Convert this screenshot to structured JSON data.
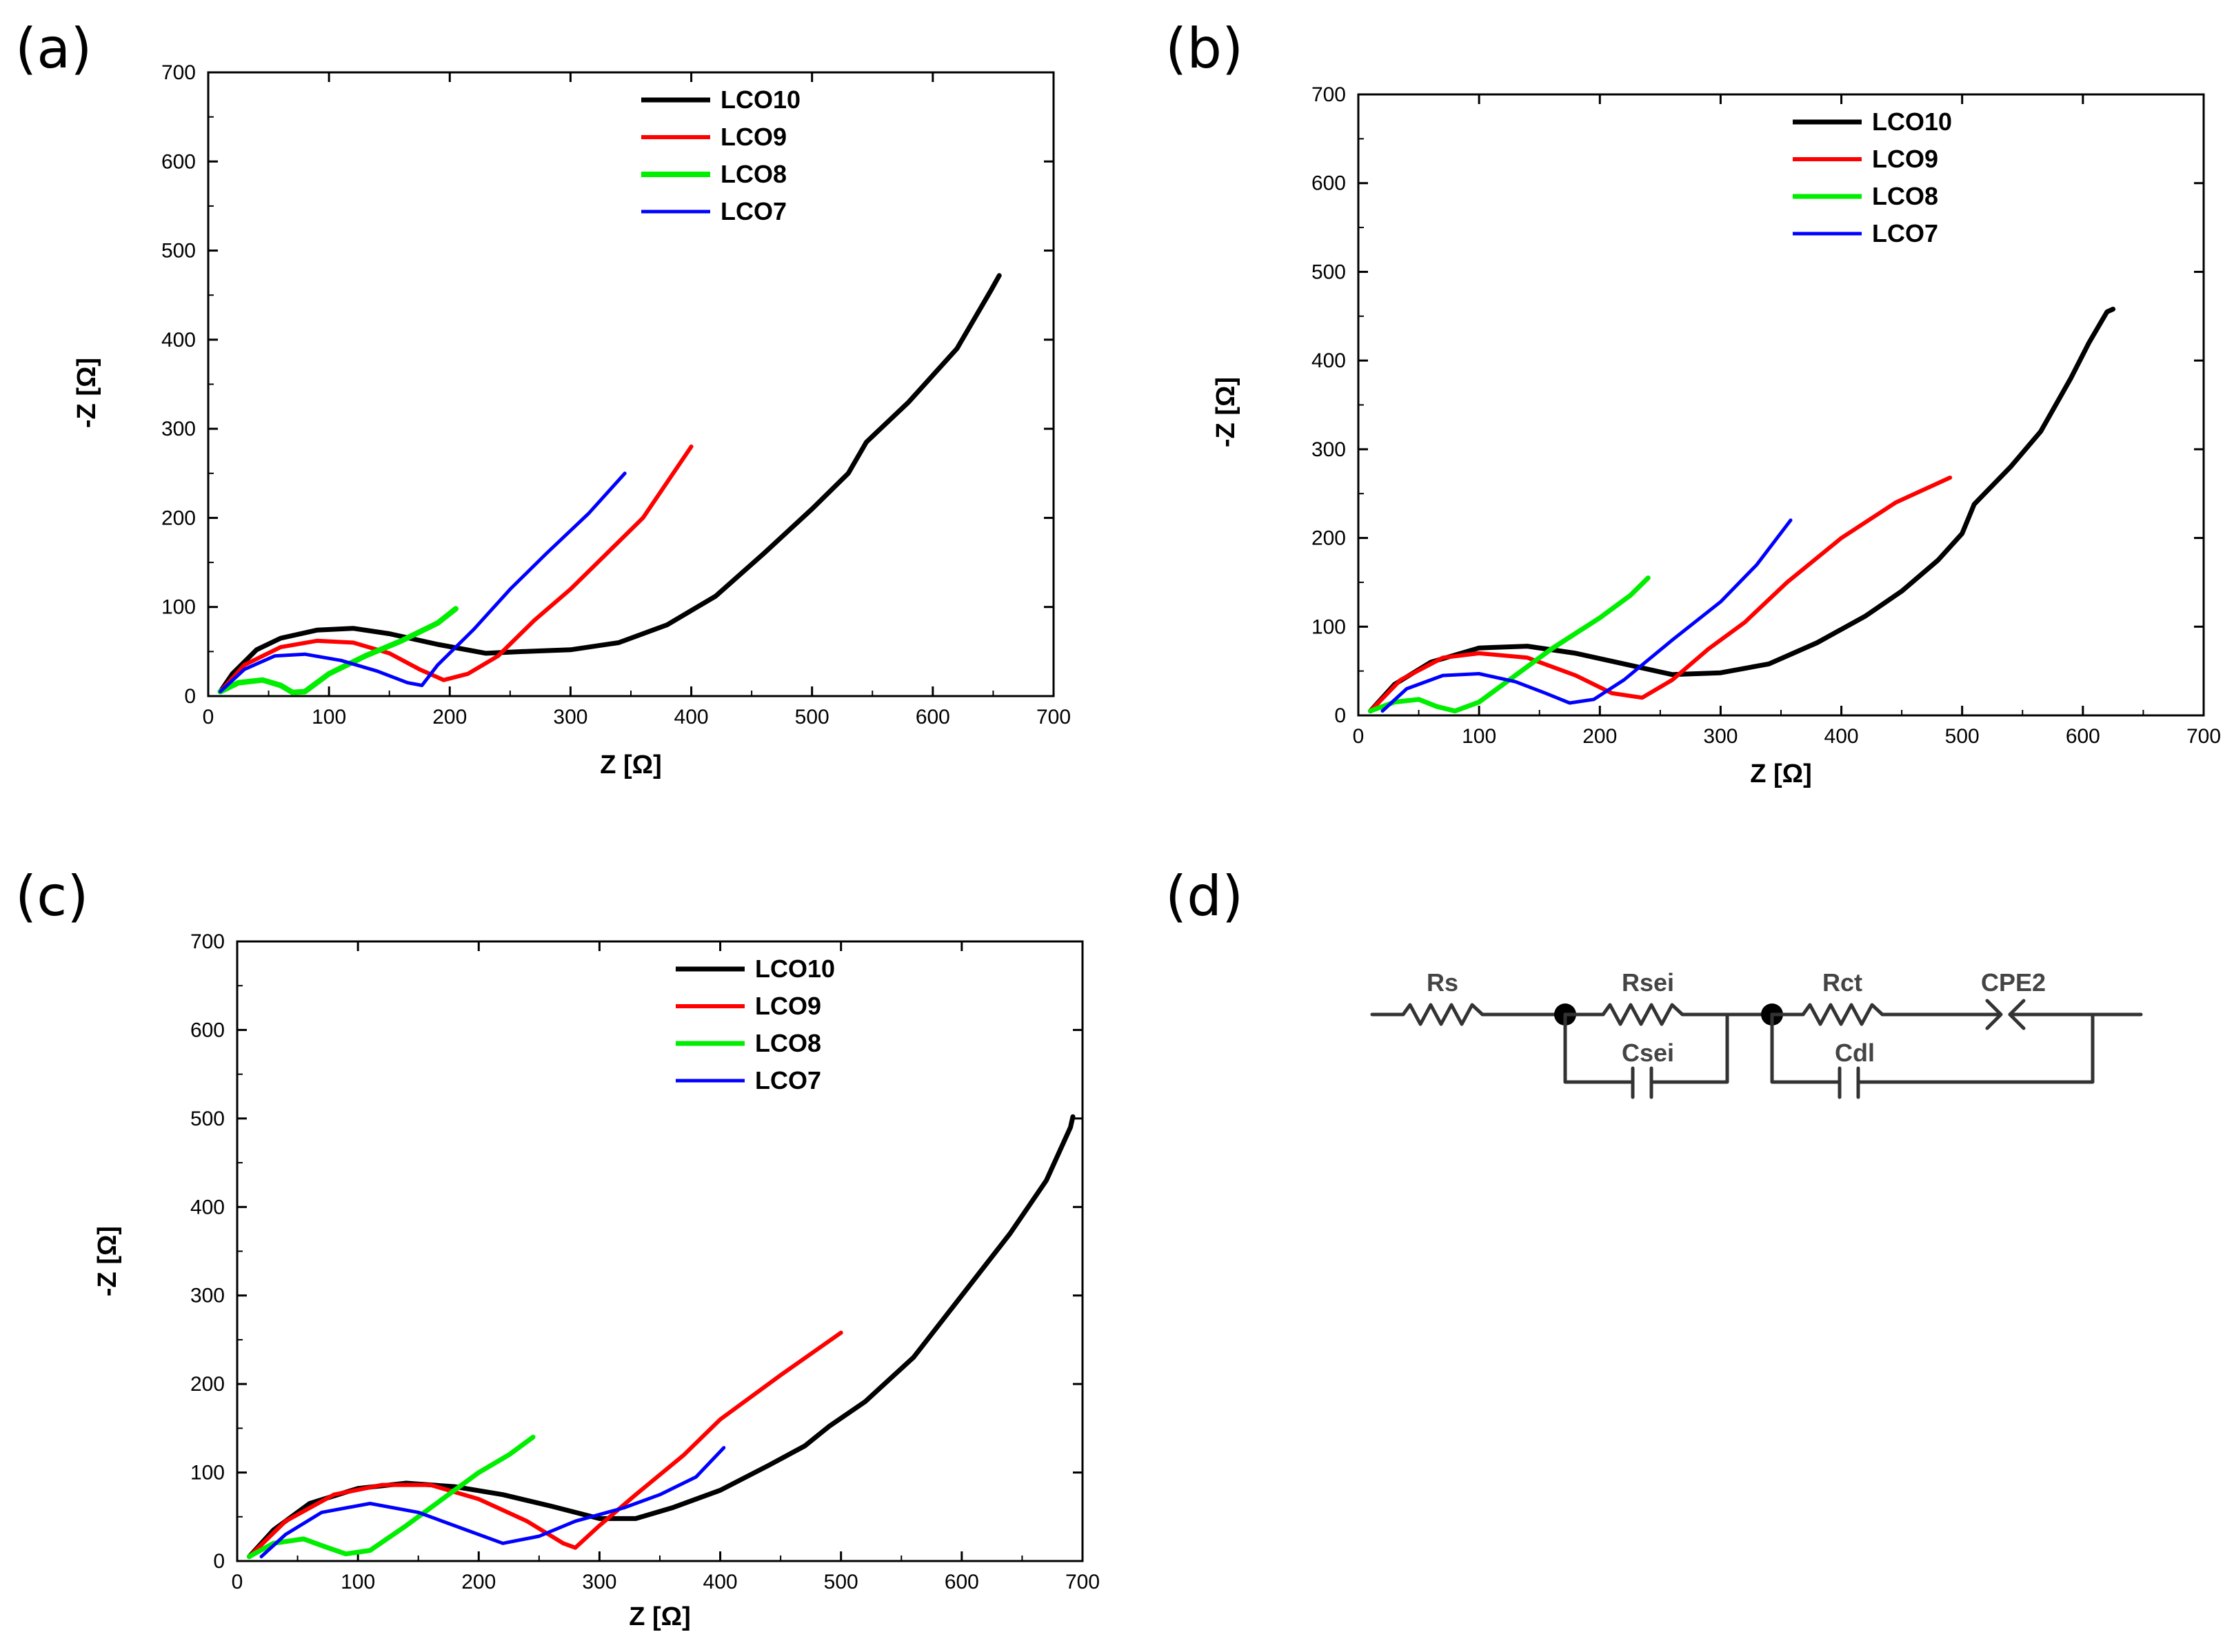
{
  "chart_data": [
    {
      "panel": "(a)",
      "type": "line",
      "xlabel": "Z [Ω]",
      "ylabel": "-Z [Ω]",
      "xlim": [
        0,
        700
      ],
      "ylim": [
        0,
        700
      ],
      "xticks": [
        0,
        100,
        200,
        300,
        400,
        500,
        600,
        700
      ],
      "yticks": [
        0,
        100,
        200,
        300,
        400,
        500,
        600,
        700
      ],
      "legend_position": "top-right",
      "series": [
        {
          "name": "LCO10",
          "color": "#000000",
          "width": 7,
          "points": [
            [
              10,
              5
            ],
            [
              20,
              25
            ],
            [
              40,
              52
            ],
            [
              60,
              65
            ],
            [
              90,
              74
            ],
            [
              120,
              76
            ],
            [
              150,
              70
            ],
            [
              190,
              58
            ],
            [
              230,
              48
            ],
            [
              260,
              50
            ],
            [
              300,
              52
            ],
            [
              340,
              60
            ],
            [
              380,
              80
            ],
            [
              420,
              112
            ],
            [
              460,
              160
            ],
            [
              500,
              210
            ],
            [
              530,
              250
            ],
            [
              545,
              285
            ],
            [
              580,
              330
            ],
            [
              620,
              390
            ],
            [
              648,
              455
            ],
            [
              655,
              472
            ]
          ]
        },
        {
          "name": "LCO9",
          "color": "#ff0000",
          "width": 6,
          "points": [
            [
              10,
              5
            ],
            [
              30,
              35
            ],
            [
              60,
              55
            ],
            [
              90,
              62
            ],
            [
              120,
              60
            ],
            [
              150,
              48
            ],
            [
              175,
              30
            ],
            [
              195,
              18
            ],
            [
              215,
              25
            ],
            [
              240,
              45
            ],
            [
              270,
              85
            ],
            [
              300,
              120
            ],
            [
              330,
              160
            ],
            [
              360,
              200
            ],
            [
              400,
              280
            ]
          ]
        },
        {
          "name": "LCO8",
          "color": "#00ee00",
          "width": 8,
          "points": [
            [
              10,
              5
            ],
            [
              25,
              15
            ],
            [
              45,
              18
            ],
            [
              60,
              12
            ],
            [
              70,
              4
            ],
            [
              80,
              5
            ],
            [
              100,
              25
            ],
            [
              130,
              45
            ],
            [
              160,
              62
            ],
            [
              190,
              82
            ],
            [
              205,
              98
            ]
          ]
        },
        {
          "name": "LCO7",
          "color": "#0000ff",
          "width": 5,
          "points": [
            [
              10,
              5
            ],
            [
              30,
              30
            ],
            [
              55,
              45
            ],
            [
              80,
              47
            ],
            [
              110,
              40
            ],
            [
              140,
              28
            ],
            [
              165,
              15
            ],
            [
              177,
              12
            ],
            [
              190,
              35
            ],
            [
              220,
              75
            ],
            [
              250,
              120
            ],
            [
              280,
              160
            ],
            [
              315,
              205
            ],
            [
              345,
              250
            ]
          ]
        }
      ]
    },
    {
      "panel": "(b)",
      "type": "line",
      "xlabel": "Z [Ω]",
      "ylabel": "-Z [Ω]",
      "xlim": [
        0,
        700
      ],
      "ylim": [
        0,
        700
      ],
      "xticks": [
        0,
        100,
        200,
        300,
        400,
        500,
        600,
        700
      ],
      "yticks": [
        0,
        100,
        200,
        300,
        400,
        500,
        600,
        700
      ],
      "legend_position": "top-right",
      "series": [
        {
          "name": "LCO10",
          "color": "#000000",
          "width": 7,
          "points": [
            [
              10,
              5
            ],
            [
              30,
              35
            ],
            [
              60,
              60
            ],
            [
              100,
              76
            ],
            [
              140,
              78
            ],
            [
              180,
              70
            ],
            [
              220,
              58
            ],
            [
              260,
              46
            ],
            [
              300,
              48
            ],
            [
              340,
              58
            ],
            [
              380,
              82
            ],
            [
              420,
              112
            ],
            [
              450,
              140
            ],
            [
              480,
              175
            ],
            [
              500,
              205
            ],
            [
              510,
              238
            ],
            [
              540,
              280
            ],
            [
              565,
              320
            ],
            [
              590,
              380
            ],
            [
              605,
              420
            ],
            [
              620,
              455
            ],
            [
              625,
              458
            ]
          ]
        },
        {
          "name": "LCO9",
          "color": "#ff0000",
          "width": 6,
          "points": [
            [
              10,
              5
            ],
            [
              35,
              40
            ],
            [
              70,
              65
            ],
            [
              100,
              70
            ],
            [
              140,
              65
            ],
            [
              180,
              45
            ],
            [
              210,
              25
            ],
            [
              235,
              20
            ],
            [
              260,
              40
            ],
            [
              290,
              75
            ],
            [
              320,
              105
            ],
            [
              355,
              150
            ],
            [
              400,
              200
            ],
            [
              445,
              240
            ],
            [
              490,
              268
            ]
          ]
        },
        {
          "name": "LCO8",
          "color": "#00ee00",
          "width": 7,
          "points": [
            [
              10,
              5
            ],
            [
              30,
              15
            ],
            [
              50,
              18
            ],
            [
              65,
              10
            ],
            [
              80,
              5
            ],
            [
              100,
              15
            ],
            [
              130,
              45
            ],
            [
              160,
              75
            ],
            [
              200,
              110
            ],
            [
              225,
              135
            ],
            [
              240,
              155
            ]
          ]
        },
        {
          "name": "LCO7",
          "color": "#0000ff",
          "width": 5,
          "points": [
            [
              20,
              5
            ],
            [
              40,
              30
            ],
            [
              70,
              45
            ],
            [
              100,
              47
            ],
            [
              130,
              38
            ],
            [
              155,
              25
            ],
            [
              175,
              14
            ],
            [
              195,
              18
            ],
            [
              220,
              40
            ],
            [
              260,
              85
            ],
            [
              300,
              128
            ],
            [
              330,
              170
            ],
            [
              358,
              220
            ]
          ]
        }
      ]
    },
    {
      "panel": "(c)",
      "type": "line",
      "xlabel": "Z [Ω]",
      "ylabel": "-Z [Ω]",
      "xlim": [
        0,
        700
      ],
      "ylim": [
        0,
        700
      ],
      "xticks": [
        0,
        100,
        200,
        300,
        400,
        500,
        600,
        700
      ],
      "yticks": [
        0,
        100,
        200,
        300,
        400,
        500,
        600,
        700
      ],
      "legend_position": "top-right",
      "series": [
        {
          "name": "LCO10",
          "color": "#000000",
          "width": 7,
          "points": [
            [
              10,
              5
            ],
            [
              30,
              35
            ],
            [
              60,
              65
            ],
            [
              100,
              82
            ],
            [
              140,
              88
            ],
            [
              180,
              84
            ],
            [
              220,
              75
            ],
            [
              260,
              62
            ],
            [
              300,
              48
            ],
            [
              330,
              48
            ],
            [
              360,
              60
            ],
            [
              400,
              80
            ],
            [
              440,
              108
            ],
            [
              470,
              130
            ],
            [
              490,
              152
            ],
            [
              520,
              180
            ],
            [
              560,
              230
            ],
            [
              600,
              300
            ],
            [
              640,
              370
            ],
            [
              670,
              430
            ],
            [
              690,
              490
            ],
            [
              692,
              502
            ]
          ]
        },
        {
          "name": "LCO9",
          "color": "#ff0000",
          "width": 6,
          "points": [
            [
              10,
              5
            ],
            [
              40,
              45
            ],
            [
              80,
              75
            ],
            [
              120,
              86
            ],
            [
              160,
              86
            ],
            [
              200,
              70
            ],
            [
              240,
              45
            ],
            [
              270,
              20
            ],
            [
              280,
              15
            ],
            [
              300,
              40
            ],
            [
              330,
              75
            ],
            [
              370,
              120
            ],
            [
              400,
              160
            ],
            [
              450,
              210
            ],
            [
              500,
              258
            ]
          ]
        },
        {
          "name": "LCO8",
          "color": "#00ee00",
          "width": 7,
          "points": [
            [
              10,
              5
            ],
            [
              30,
              20
            ],
            [
              55,
              25
            ],
            [
              75,
              15
            ],
            [
              90,
              8
            ],
            [
              110,
              12
            ],
            [
              140,
              40
            ],
            [
              170,
              70
            ],
            [
              200,
              100
            ],
            [
              225,
              120
            ],
            [
              245,
              140
            ]
          ]
        },
        {
          "name": "LCO7",
          "color": "#0000ff",
          "width": 5,
          "points": [
            [
              20,
              5
            ],
            [
              40,
              30
            ],
            [
              70,
              55
            ],
            [
              110,
              65
            ],
            [
              150,
              55
            ],
            [
              190,
              35
            ],
            [
              220,
              20
            ],
            [
              250,
              28
            ],
            [
              280,
              45
            ],
            [
              320,
              60
            ],
            [
              350,
              75
            ],
            [
              380,
              95
            ],
            [
              403,
              128
            ]
          ]
        }
      ]
    }
  ],
  "panels": {
    "a": {
      "label": "(a)"
    },
    "b": {
      "label": "(b)"
    },
    "c": {
      "label": "(c)"
    },
    "d": {
      "label": "(d)"
    }
  },
  "circuit": {
    "labels": {
      "rs": "Rs",
      "rsei": "Rsei",
      "csei": "Csei",
      "rct": "Rct",
      "cdl": "Cdl",
      "cpe2": "CPE2"
    }
  }
}
